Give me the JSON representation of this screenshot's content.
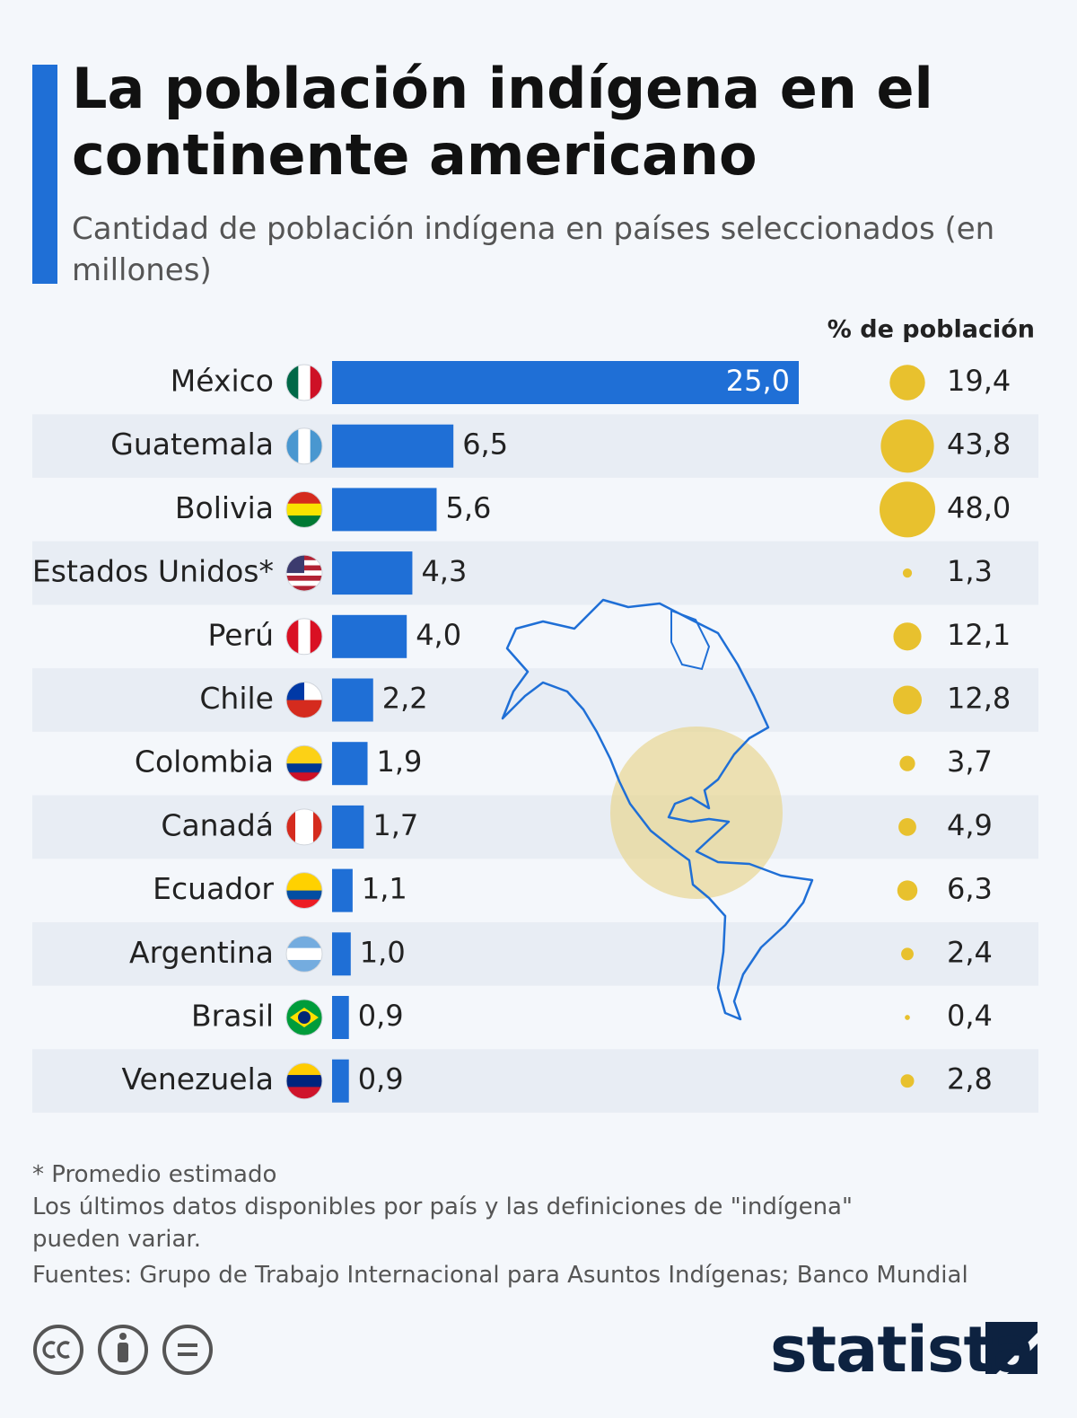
{
  "chart_data": {
    "type": "bar",
    "title": "La población indígena en el continente americano",
    "subtitle": "Cantidad de población indígena en países seleccionados (en millones)",
    "categories": [
      "México",
      "Guatemala",
      "Bolivia",
      "Estados Unidos*",
      "Perú",
      "Chile",
      "Colombia",
      "Canadá",
      "Ecuador",
      "Argentina",
      "Brasil",
      "Venezuela"
    ],
    "values": [
      25.0,
      6.5,
      5.6,
      4.3,
      4.0,
      2.2,
      1.9,
      1.7,
      1.1,
      1.0,
      0.9,
      0.9
    ],
    "value_labels": [
      "25,0",
      "6,5",
      "5,6",
      "4,3",
      "4,0",
      "2,2",
      "1,9",
      "1,7",
      "1,1",
      "1,0",
      "0,9",
      "0,9"
    ],
    "color": "#1f6fd6",
    "pct_header": "% de población",
    "pct_values": [
      19.4,
      43.8,
      48.0,
      1.3,
      12.1,
      12.8,
      3.7,
      4.9,
      6.3,
      2.4,
      0.4,
      2.8
    ],
    "pct_labels": [
      "19,4",
      "43,8",
      "48,0",
      "1,3",
      "12,1",
      "12,8",
      "3,7",
      "4,9",
      "6,3",
      "2,4",
      "0,4",
      "2,8"
    ],
    "pct_color": "#e8c12e"
  },
  "footer": {
    "notes": [
      "* Promedio estimado",
      "Los últimos datos disponibles por país y las definiciones de \"indígena\" pueden variar."
    ],
    "source": "Fuentes: Grupo de Trabajo Internacional para Asuntos Indígenas; Banco Mundial",
    "brand": "statista"
  }
}
